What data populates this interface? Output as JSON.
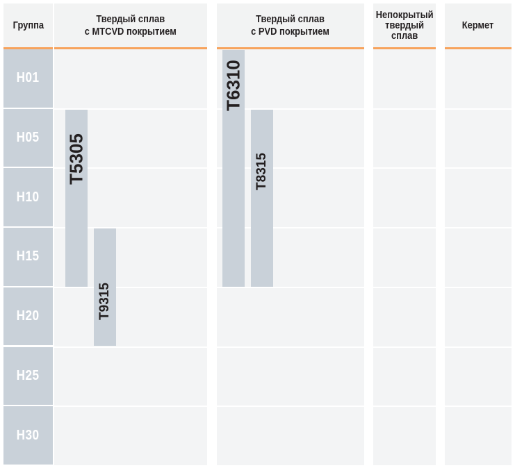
{
  "headers": {
    "group": "Группа",
    "mtcvd": [
      "Твердый сплав",
      "с MTCVD покрытием"
    ],
    "pvd": [
      "Твердый сплав",
      "с PVD покрытием"
    ],
    "uncoated": [
      "Непокрытый",
      "твердый",
      "сплав"
    ],
    "cermet": "Кермет"
  },
  "colors": {
    "header_bg": "#f2f3f3",
    "header_underline": "#f7a35c",
    "column_bg": "#f3f4f5",
    "bar_fill": "#c9d1d9",
    "group_text": "#ffffff"
  },
  "chart_data": {
    "type": "range-bar",
    "title": "",
    "categories": [
      "H01",
      "H05",
      "H10",
      "H15",
      "H20",
      "H25",
      "H30"
    ],
    "columns": [
      "Твердый сплав с MTCVD покрытием",
      "Твердый сплав с PVD покрытием",
      "Непокрытый твердый сплав",
      "Кермет"
    ],
    "grades": [
      {
        "name": "T5305",
        "column": "Твердый сплав с MTCVD покрытием",
        "from": "H05",
        "to": "H15"
      },
      {
        "name": "T9315",
        "column": "Твердый сплав с MTCVD покрытием",
        "from": "H15",
        "to": "H20"
      },
      {
        "name": "T6310",
        "column": "Твердый сплав с PVD покрытием",
        "from": "H01",
        "to": "H15"
      },
      {
        "name": "T8315",
        "column": "Твердый сплав с PVD покрытием",
        "from": "H05",
        "to": "H15"
      }
    ]
  }
}
